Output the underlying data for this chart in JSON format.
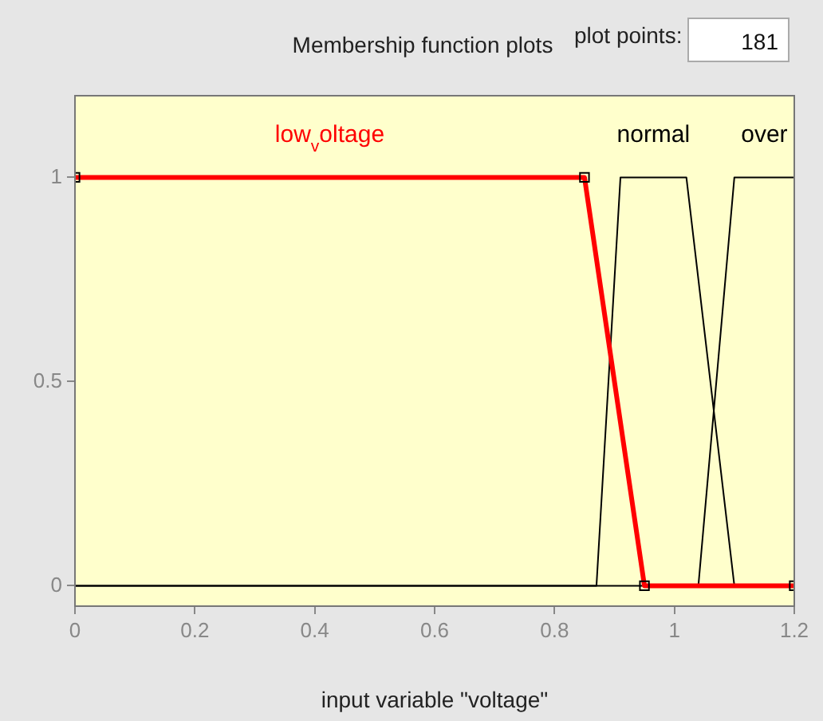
{
  "chart_data": {
    "type": "line",
    "title": "Membership function plots",
    "xlabel": "input variable \"voltage\"",
    "annotations": [
      "plot points:",
      "181"
    ],
    "xlim": [
      0,
      1.2
    ],
    "xticks": [
      0,
      0.2,
      0.4,
      0.6,
      0.8,
      1,
      1.2
    ],
    "ylim": [
      -0.05,
      1.2
    ],
    "yticks": [
      0,
      0.5,
      1
    ],
    "legend": false,
    "line_style": "solid",
    "series": [
      {
        "name": "low$_{v}$oltage",
        "color": "#ff0000",
        "x": [
          0,
          0.85,
          0.95,
          1.2
        ],
        "values": [
          1,
          1,
          0,
          0
        ],
        "marker": "square"
      },
      {
        "name": "normal",
        "color": "#000000",
        "x": [
          0,
          0.87,
          0.91,
          1.02,
          1.1,
          1.2
        ],
        "values": [
          0,
          0,
          1,
          1,
          0,
          0
        ]
      },
      {
        "name": "over",
        "color": "#000000",
        "x": [
          0,
          1.04,
          1.1,
          1.2
        ],
        "values": [
          0,
          0,
          1,
          1
        ]
      }
    ]
  }
}
